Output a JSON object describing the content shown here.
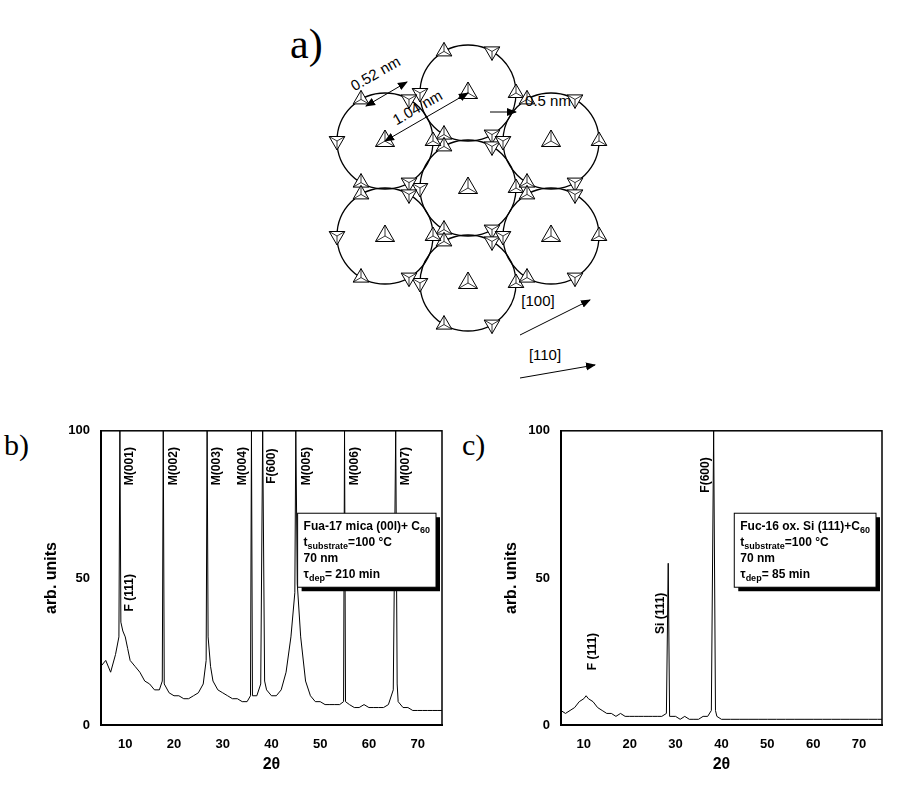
{
  "diagram": {
    "panel_label": "a)",
    "dimensions": [
      "0.52 nm",
      "1.04 nm",
      "0.5 nm"
    ],
    "directions": [
      "[100]",
      "[110]"
    ]
  },
  "chart_data": [
    {
      "type": "line",
      "panel_label": "b)",
      "xlabel": "2θ",
      "ylabel": "arb. units",
      "color": "#000000",
      "grid": false,
      "xlim": [
        5,
        75
      ],
      "ylim": [
        0,
        100
      ],
      "xticks": [
        10,
        20,
        30,
        40,
        50,
        60,
        70
      ],
      "yticks": [
        0,
        50,
        100
      ],
      "x": [
        5,
        6,
        7,
        8,
        8.7,
        8.9,
        9.1,
        9.5,
        10,
        10.5,
        11,
        12,
        13,
        14,
        15,
        16,
        17,
        17.6,
        17.8,
        18,
        19,
        20,
        21,
        22,
        23,
        24,
        25,
        26,
        26.6,
        26.8,
        27,
        27.5,
        28,
        29,
        30,
        31,
        32,
        33,
        34,
        35,
        35.7,
        35.9,
        36.1,
        37,
        37.8,
        38.2,
        38.6,
        39,
        40,
        41,
        42,
        43,
        44,
        44.8,
        45,
        45.3,
        46,
        47,
        48,
        49,
        50,
        51,
        52,
        53,
        54,
        54.8,
        55,
        55.2,
        56,
        57,
        58,
        59,
        60,
        61,
        62,
        63,
        64,
        65,
        65.5,
        65.8,
        66,
        67,
        68,
        69,
        70,
        71,
        72,
        73,
        74,
        75
      ],
      "values": [
        20,
        22,
        18,
        24,
        30,
        100,
        35,
        32,
        30,
        26,
        22,
        20,
        18,
        15,
        14,
        12,
        12,
        15,
        100,
        14,
        11,
        10,
        10,
        9,
        9,
        10,
        11,
        14,
        22,
        100,
        30,
        20,
        15,
        12,
        11,
        10,
        9,
        9,
        8,
        8,
        10,
        100,
        10,
        10,
        14,
        100,
        15,
        12,
        10,
        10,
        12,
        18,
        30,
        45,
        100,
        48,
        30,
        15,
        10,
        8,
        8,
        7,
        7,
        7,
        7,
        8,
        100,
        8,
        7,
        6,
        6,
        7,
        6,
        6,
        6,
        6,
        7,
        12,
        100,
        14,
        8,
        6,
        6,
        5,
        5,
        5,
        5,
        5,
        5,
        5
      ],
      "annotations": [
        {
          "text": "M(001)",
          "x": 11,
          "y": 88
        },
        {
          "text": "M(002)",
          "x": 20,
          "y": 88
        },
        {
          "text": "M(003)",
          "x": 28.8,
          "y": 88
        },
        {
          "text": "M(004)",
          "x": 34,
          "y": 88
        },
        {
          "text": "F(600)",
          "x": 40,
          "y": 88
        },
        {
          "text": "M(005)",
          "x": 47.3,
          "y": 88
        },
        {
          "text": "M(006)",
          "x": 57,
          "y": 88
        },
        {
          "text": "M(007)",
          "x": 67.5,
          "y": 88
        },
        {
          "text": "F (111)",
          "x": 11,
          "y": 45
        }
      ],
      "info": [
        [
          "Fua-17 mica (00l)+ C",
          "60"
        ],
        [
          "t",
          "substrate",
          "=100 °C"
        ],
        [
          "70 nm"
        ],
        [
          "τ",
          "dep",
          "= 210 min"
        ]
      ]
    },
    {
      "type": "line",
      "panel_label": "c)",
      "xlabel": "2θ",
      "ylabel": "arb. units",
      "color": "#000000",
      "grid": false,
      "xlim": [
        5,
        75
      ],
      "ylim": [
        0,
        100
      ],
      "xticks": [
        10,
        20,
        30,
        40,
        50,
        60,
        70
      ],
      "yticks": [
        0,
        50,
        100
      ],
      "x": [
        5,
        6,
        7,
        8,
        9,
        10,
        10.5,
        11,
        12,
        13,
        14,
        15,
        16,
        17,
        18,
        19,
        20,
        21,
        22,
        23,
        24,
        25,
        26,
        27,
        28,
        28.4,
        28.7,
        29,
        30,
        31,
        32,
        33,
        34,
        35,
        36,
        37,
        37.8,
        38.3,
        38.7,
        39,
        40,
        42,
        44,
        46,
        48,
        50,
        52,
        54,
        56,
        58,
        60,
        62,
        64,
        66,
        68,
        70,
        72,
        74,
        75
      ],
      "values": [
        5,
        4,
        5,
        6,
        8,
        9,
        10,
        9,
        8,
        6,
        5,
        4,
        4,
        3,
        4,
        3,
        3,
        3,
        3,
        3,
        3,
        3,
        3,
        3,
        4,
        55,
        3,
        3,
        3,
        2,
        3,
        2,
        2,
        2,
        3,
        3,
        5,
        100,
        5,
        3,
        2,
        2,
        2,
        2,
        2,
        2,
        2,
        2,
        2,
        2,
        2,
        2,
        2,
        2,
        2,
        2,
        2,
        2,
        2
      ],
      "annotations": [
        {
          "text": "F (111)",
          "x": 12,
          "y": 25
        },
        {
          "text": "Si (111)",
          "x": 26.8,
          "y": 38
        },
        {
          "text": "F(600)",
          "x": 36.5,
          "y": 85
        }
      ],
      "info": [
        [
          "Fuc-16 ox. Si (111)+C",
          "60"
        ],
        [
          "t",
          "substrate",
          "=100 °C"
        ],
        [
          "70 nm"
        ],
        [
          "τ",
          "dep",
          "= 85 min"
        ]
      ]
    }
  ]
}
